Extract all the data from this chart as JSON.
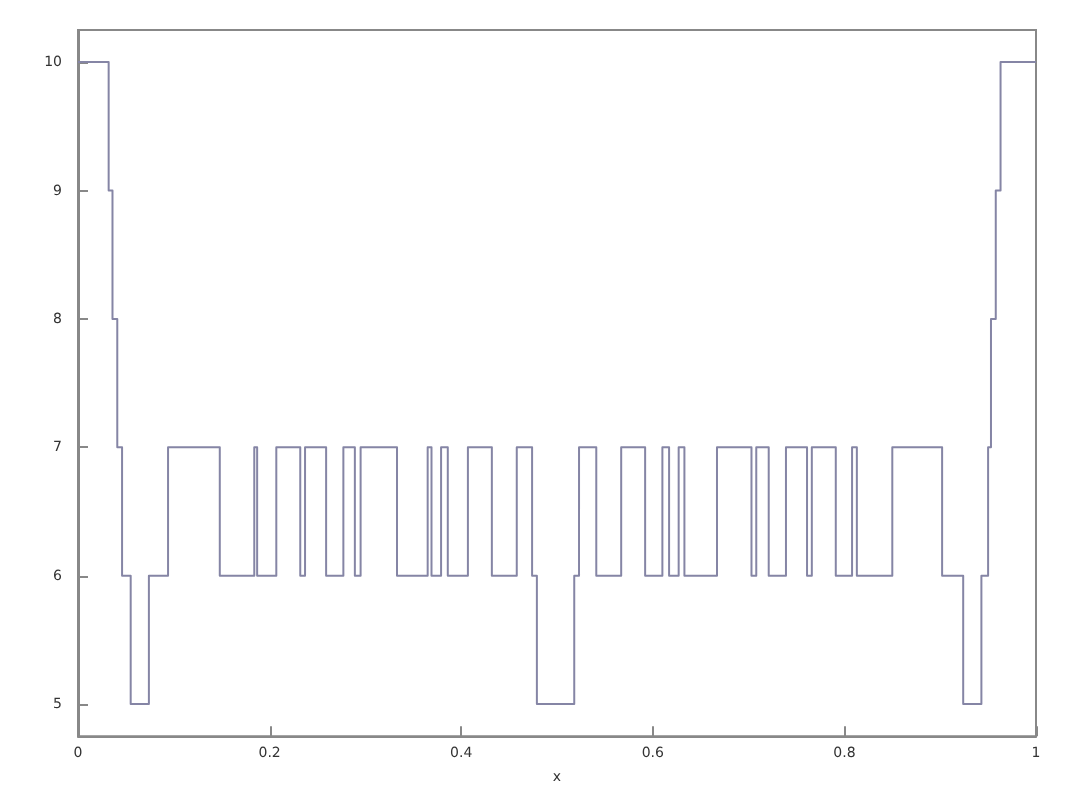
{
  "chart_data": {
    "type": "step",
    "xlabel": "x",
    "color": "#8585a5",
    "xlim": [
      0,
      1
    ],
    "ylim": [
      4.75,
      10.25
    ],
    "xticks": [
      0,
      0.2,
      0.4,
      0.6,
      0.8,
      1
    ],
    "yticks": [
      5,
      6,
      7,
      8,
      9,
      10
    ],
    "x": [
      0,
      0.032,
      0.036,
      0.041,
      0.046,
      0.055,
      0.074,
      0.094,
      0.148,
      0.184,
      0.187,
      0.207,
      0.232,
      0.237,
      0.259,
      0.277,
      0.289,
      0.295,
      0.333,
      0.365,
      0.369,
      0.379,
      0.386,
      0.407,
      0.432,
      0.458,
      0.474,
      0.479,
      0.518,
      0.523,
      0.541,
      0.567,
      0.592,
      0.61,
      0.617,
      0.627,
      0.633,
      0.667,
      0.703,
      0.708,
      0.721,
      0.739,
      0.761,
      0.766,
      0.791,
      0.808,
      0.813,
      0.85,
      0.902,
      0.924,
      0.943,
      0.95,
      0.953,
      0.958,
      0.963,
      1
    ],
    "values": [
      10,
      9,
      8,
      7,
      6,
      5,
      6,
      7,
      6,
      7,
      6,
      7,
      6,
      7,
      6,
      7,
      6,
      7,
      6,
      7,
      6,
      7,
      6,
      7,
      6,
      7,
      6,
      5,
      6,
      7,
      6,
      7,
      6,
      7,
      6,
      7,
      6,
      7,
      6,
      7,
      6,
      7,
      6,
      7,
      6,
      7,
      6,
      7,
      6,
      5,
      6,
      7,
      8,
      9,
      10,
      10
    ]
  }
}
